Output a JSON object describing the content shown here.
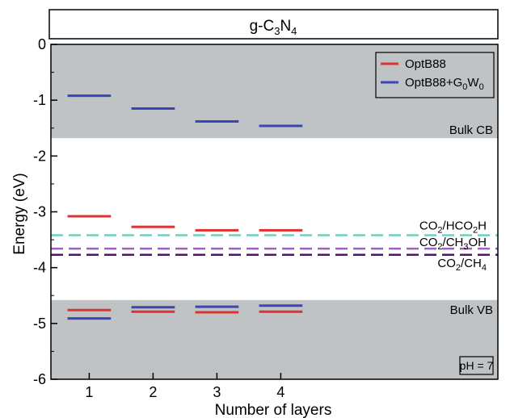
{
  "chart_data": {
    "type": "scatter",
    "title_html": {
      "base": "g-C",
      "sub1": "3",
      "mid": "N",
      "sub2": "4"
    },
    "xlabel": "Number of layers",
    "ylabel": "Energy (eV)",
    "xlim": [
      0.4,
      7.4
    ],
    "ylim": [
      -6,
      0
    ],
    "x_ticks": [
      1,
      2,
      3,
      4
    ],
    "y_ticks": [
      0,
      -1,
      -2,
      -3,
      -4,
      -5,
      -6
    ],
    "bands": [
      {
        "name": "Bulk CB",
        "from": -1.68,
        "to": 0,
        "color": "#bfc3c6"
      },
      {
        "name": "Bulk VB",
        "from": -6,
        "to": -4.58,
        "color": "#bfc3c6"
      }
    ],
    "series": [
      {
        "name": "OptB88",
        "color": "#e03030",
        "points": [
          {
            "x": 1,
            "cb": -3.08,
            "vb": -4.76
          },
          {
            "x": 2,
            "cb": -3.27,
            "vb": -4.79
          },
          {
            "x": 3,
            "cb": -3.33,
            "vb": -4.8
          },
          {
            "x": 4,
            "cb": -3.33,
            "vb": -4.79
          }
        ]
      },
      {
        "name": "OptB88+G0W0",
        "color": "#3a45b6",
        "points": [
          {
            "x": 1,
            "cb": -0.92,
            "vb": -4.91
          },
          {
            "x": 2,
            "cb": -1.15,
            "vb": -4.71
          },
          {
            "x": 3,
            "cb": -1.38,
            "vb": -4.7
          },
          {
            "x": 4,
            "cb": -1.46,
            "vb": -4.68
          }
        ]
      }
    ],
    "reference_lines": [
      {
        "label_parts": [
          "CO",
          "2",
          "/HCO",
          "2",
          "H"
        ],
        "value": -3.42,
        "color": "#6fcfbf"
      },
      {
        "label_parts": [
          "CO",
          "2",
          "/CH",
          "3",
          "OH"
        ],
        "value": -3.66,
        "color": "#a15fc4"
      },
      {
        "label_parts": [
          "CO",
          "2",
          "/CH",
          "4",
          ""
        ],
        "value": -3.77,
        "color": "#4b1a5e"
      }
    ],
    "legend": {
      "placement": "top-right",
      "entries": [
        {
          "parts": [
            "OptB88",
            "",
            ""
          ],
          "color": "#e03030"
        },
        {
          "parts": [
            "OptB88+G",
            "0",
            "W",
            "0"
          ],
          "color": "#3a45b6"
        }
      ]
    },
    "annotations": {
      "ph_label": "pH = 7"
    }
  }
}
